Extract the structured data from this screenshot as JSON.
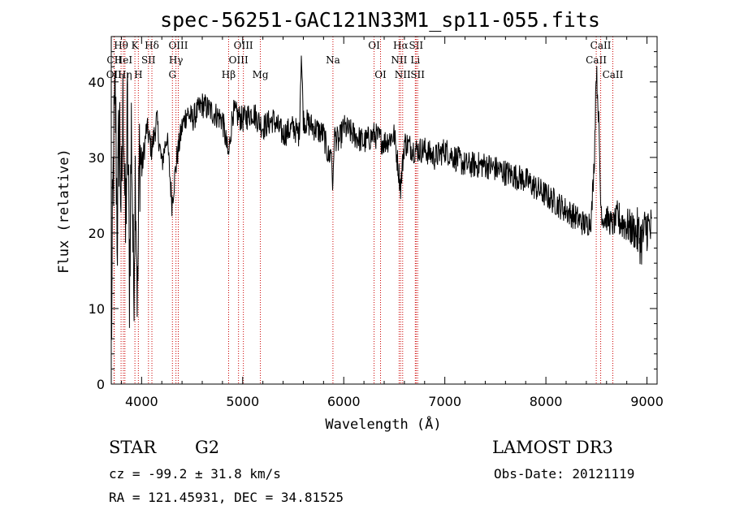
{
  "chart_data": {
    "type": "line",
    "title": "spec-56251-GAC121N33M1_sp11-055.fits",
    "xlabel": "Wavelength (Å)",
    "ylabel": "Flux (relative)",
    "xlim": [
      3700,
      9100
    ],
    "ylim": [
      0,
      46
    ],
    "xticks": [
      4000,
      5000,
      6000,
      7000,
      8000,
      9000
    ],
    "yticks": [
      0,
      10,
      20,
      30,
      40
    ],
    "series": [
      {
        "name": "flux",
        "x": [
          3700,
          3720,
          3740,
          3760,
          3780,
          3800,
          3820,
          3840,
          3860,
          3880,
          3900,
          3920,
          3940,
          3960,
          3980,
          4000,
          4050,
          4100,
          4150,
          4200,
          4250,
          4300,
          4350,
          4400,
          4450,
          4500,
          4600,
          4700,
          4800,
          4860,
          4900,
          5000,
          5100,
          5200,
          5300,
          5400,
          5500,
          5560,
          5580,
          5600,
          5700,
          5800,
          5850,
          5880,
          5893,
          5905,
          5950,
          6000,
          6100,
          6200,
          6300,
          6400,
          6500,
          6563,
          6600,
          6700,
          6800,
          6900,
          7000,
          7200,
          7400,
          7600,
          7800,
          8000,
          8200,
          8300,
          8400,
          8450,
          8480,
          8498,
          8520,
          8542,
          8560,
          8600,
          8662,
          8700,
          8800,
          8900,
          8950,
          9000,
          9050
        ],
        "y": [
          5,
          28,
          38,
          20,
          36,
          22,
          40,
          18,
          36,
          14,
          35,
          12,
          30,
          10,
          32,
          28,
          34,
          31,
          35,
          29,
          33,
          24,
          30,
          34,
          36,
          35,
          37,
          36,
          35,
          30,
          36,
          35,
          36,
          34,
          35,
          33,
          34,
          33,
          44,
          35,
          34,
          33,
          30,
          31,
          25,
          33,
          32,
          34,
          33,
          32,
          33,
          32,
          33,
          26,
          32,
          31,
          31,
          30,
          31,
          29,
          29,
          28,
          27,
          25,
          23,
          22,
          21,
          22,
          30,
          42,
          36,
          24,
          22,
          22,
          21,
          22,
          21,
          20,
          19,
          21,
          20
        ]
      }
    ],
    "spectral_lines": [
      {
        "label": "OII",
        "wavelength": 3727,
        "row": 2
      },
      {
        "label": "Hθ",
        "wavelength": 3797,
        "row": 0
      },
      {
        "label": "CII",
        "wavelength": 3730,
        "row": 1
      },
      {
        "label": "Hη",
        "wavelength": 3835,
        "row": 2
      },
      {
        "label": "HeI",
        "wavelength": 3820,
        "row": 1
      },
      {
        "label": "K",
        "wavelength": 3934,
        "row": 0
      },
      {
        "label": "H",
        "wavelength": 3968,
        "row": 2
      },
      {
        "label": "SII",
        "wavelength": 4068,
        "row": 1
      },
      {
        "label": "Hδ",
        "wavelength": 4102,
        "row": 0
      },
      {
        "label": "OIII",
        "wavelength": 4363,
        "row": 0
      },
      {
        "label": "Hγ",
        "wavelength": 4340,
        "row": 1
      },
      {
        "label": "G",
        "wavelength": 4305,
        "row": 2
      },
      {
        "label": "Hβ",
        "wavelength": 4861,
        "row": 2
      },
      {
        "label": "OIII",
        "wavelength": 4959,
        "row": 1
      },
      {
        "label": "OIII",
        "wavelength": 5007,
        "row": 0
      },
      {
        "label": "Mg",
        "wavelength": 5175,
        "row": 2
      },
      {
        "label": "Na",
        "wavelength": 5893,
        "row": 1
      },
      {
        "label": "OI",
        "wavelength": 6300,
        "row": 0
      },
      {
        "label": "OI",
        "wavelength": 6364,
        "row": 2
      },
      {
        "label": "Hα",
        "wavelength": 6563,
        "row": 0
      },
      {
        "label": "NII",
        "wavelength": 6548,
        "row": 1
      },
      {
        "label": "NII",
        "wavelength": 6583,
        "row": 2
      },
      {
        "label": "SII",
        "wavelength": 6716,
        "row": 0
      },
      {
        "label": "Li",
        "wavelength": 6708,
        "row": 1
      },
      {
        "label": "SII",
        "wavelength": 6731,
        "row": 2
      },
      {
        "label": "CaII",
        "wavelength": 8498,
        "row": 1
      },
      {
        "label": "CaII",
        "wavelength": 8542,
        "row": 0
      },
      {
        "label": "CaII",
        "wavelength": 8662,
        "row": 2
      }
    ]
  },
  "info": {
    "object_class": "STAR",
    "subclass": "G2",
    "survey": "LAMOST DR3",
    "redshift_text": "cz = -99.2 ± 31.8 km/s",
    "obs_date_text": "Obs-Date: 20121119",
    "coords_text": "RA = 121.45931, DEC =  34.81525"
  }
}
